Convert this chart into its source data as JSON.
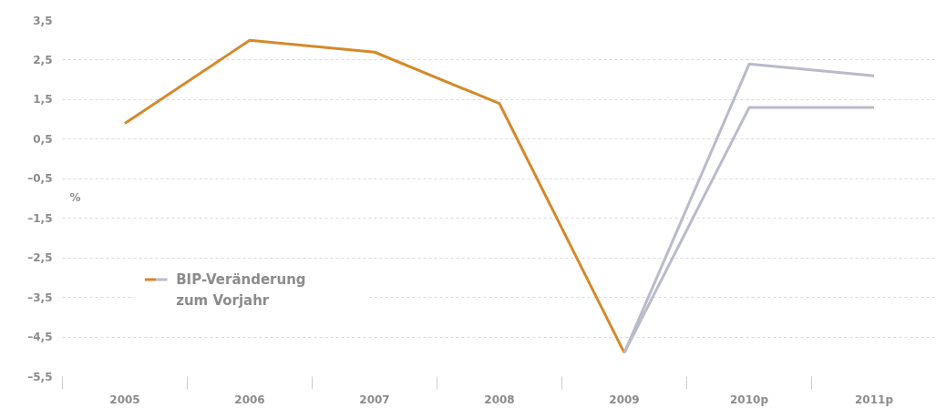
{
  "chart_data": {
    "type": "line",
    "ylabel": "%",
    "categories": [
      "2005",
      "2006",
      "2007",
      "2008",
      "2009",
      "2010p",
      "2011p"
    ],
    "series": [
      {
        "name": "BIP-Veränderung zum Vorjahr",
        "color": "#d4892a",
        "values": [
          0.9,
          3.0,
          2.7,
          1.4,
          -4.9,
          null,
          null
        ]
      },
      {
        "color": "#b9bacb",
        "values": [
          null,
          null,
          null,
          null,
          -4.9,
          2.4,
          2.1
        ]
      },
      {
        "color": "#b9bacb",
        "values": [
          null,
          null,
          null,
          null,
          -4.9,
          1.3,
          1.3
        ]
      }
    ],
    "ylim": [
      -5.5,
      3.5
    ],
    "yticks": [
      {
        "value": 3.5,
        "label": "3,5"
      },
      {
        "value": 2.5,
        "label": "2,5"
      },
      {
        "value": 1.5,
        "label": "1,5"
      },
      {
        "value": 0.5,
        "label": "0,5"
      },
      {
        "value": -0.5,
        "label": "–0,5"
      },
      {
        "value": -1.5,
        "label": "–1,5"
      },
      {
        "value": -2.5,
        "label": "–2,5"
      },
      {
        "value": -3.5,
        "label": "–3,5"
      },
      {
        "value": -4.5,
        "label": "–4,5"
      },
      {
        "value": -5.5,
        "label": "–5,5"
      }
    ],
    "grid": "y",
    "legend": "bottom left",
    "line_style": "solid",
    "marker": "none"
  }
}
